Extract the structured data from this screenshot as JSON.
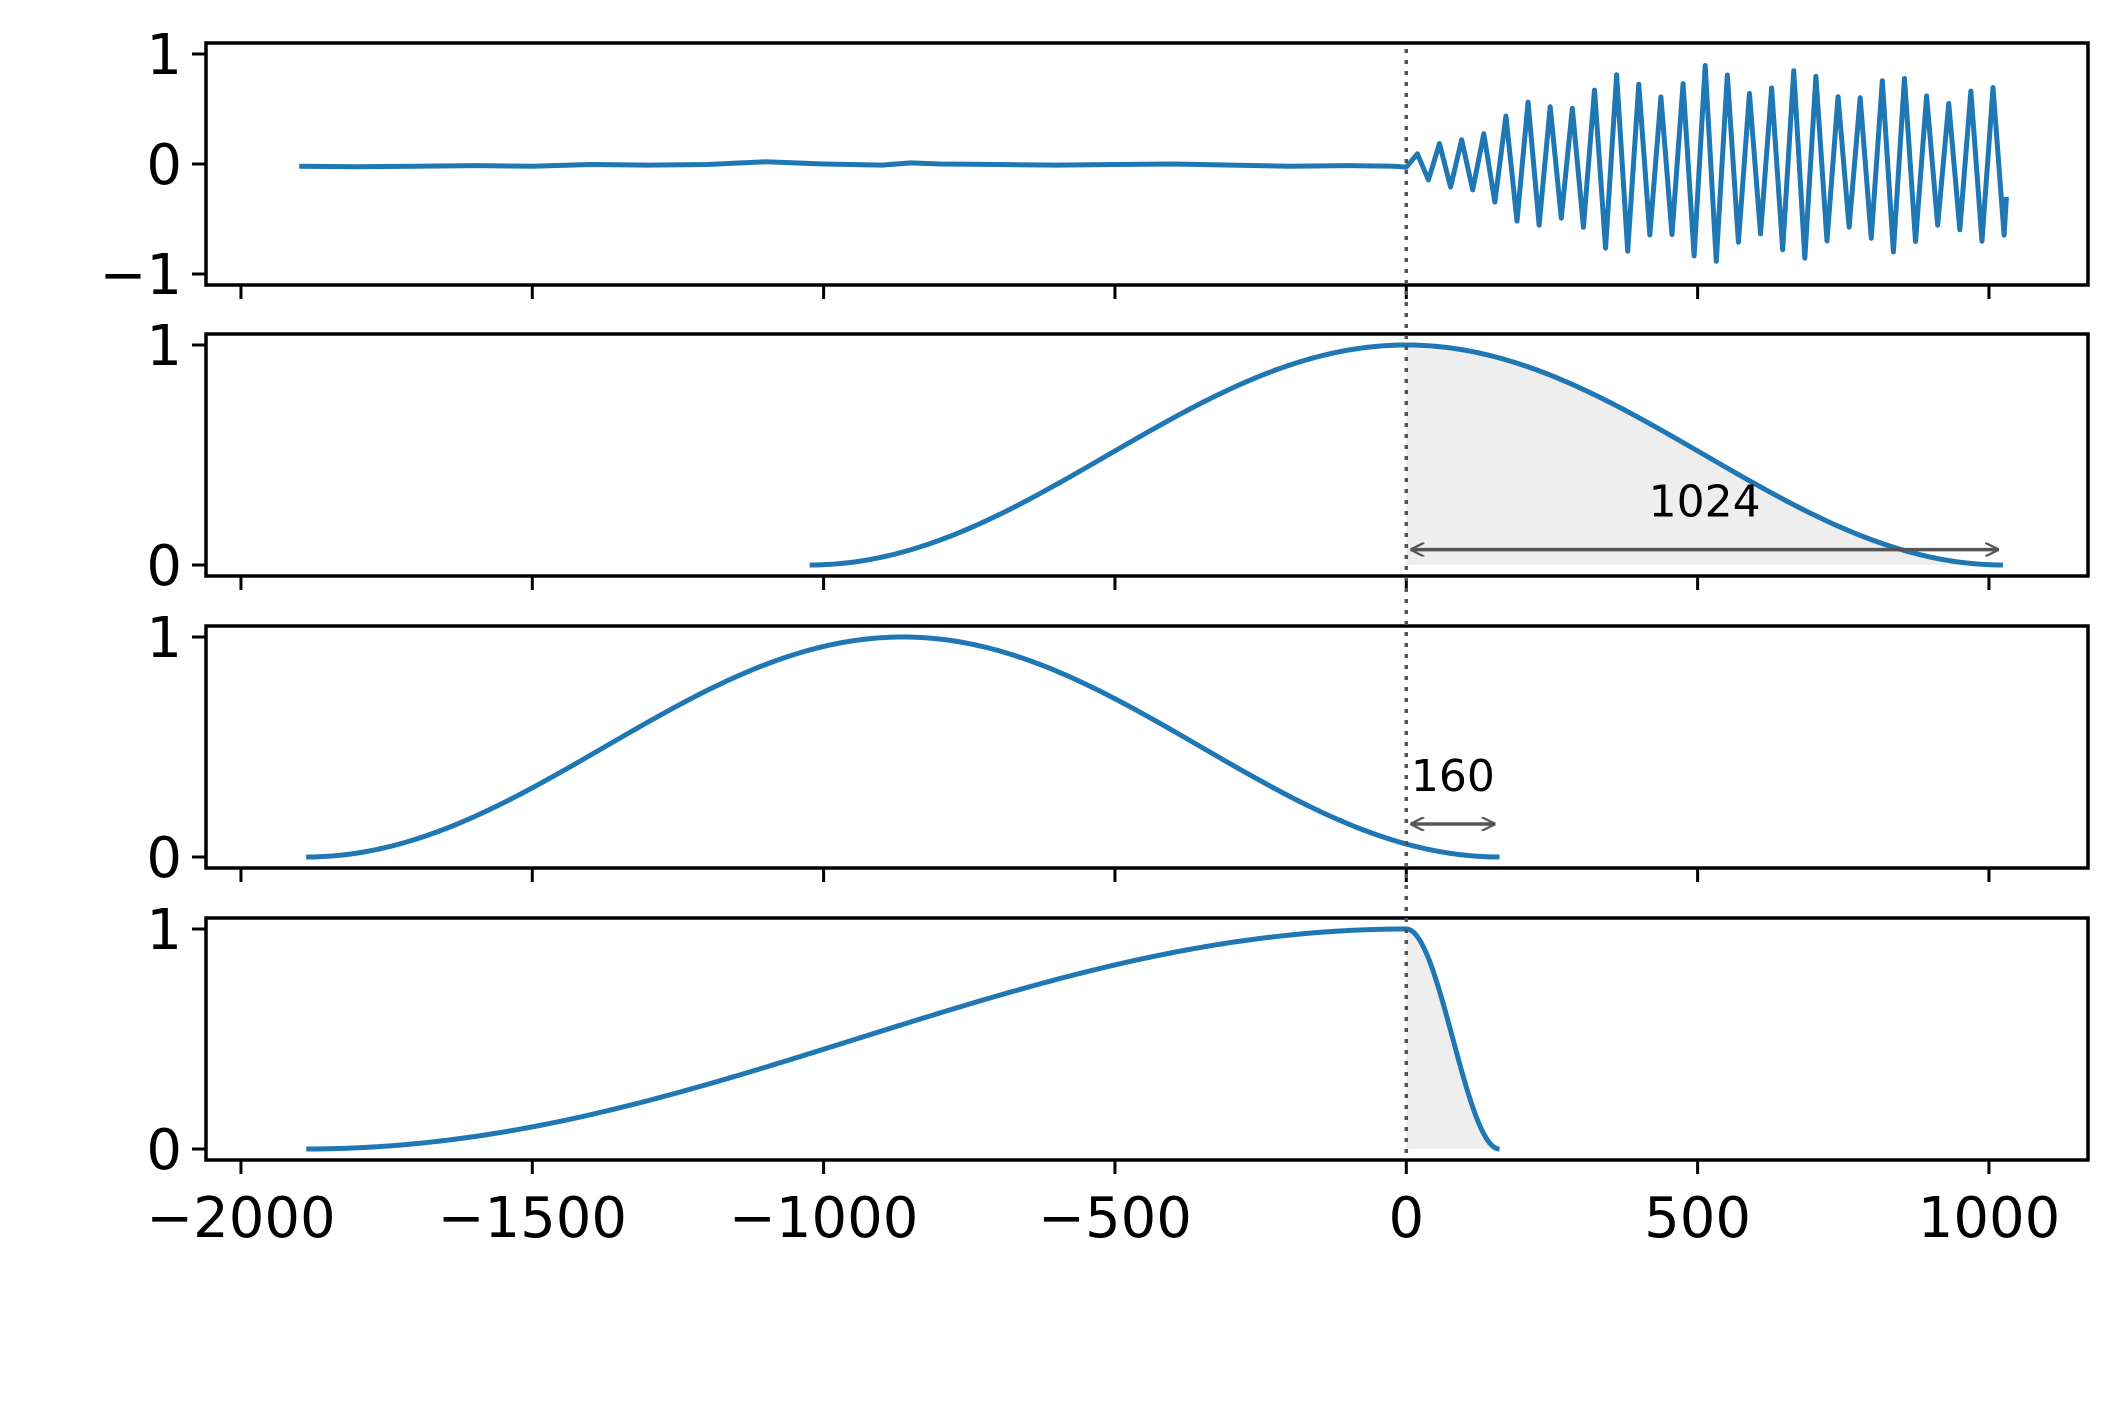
{
  "chart_data": {
    "type": "line",
    "layout": "4 vertically stacked panels sharing the x axis",
    "x_axis": {
      "range": [
        -2060,
        1170
      ],
      "ticks": [
        -2000,
        -1500,
        -1000,
        -500,
        0,
        500,
        1000
      ],
      "tick_labels": [
        "−2000",
        "−1500",
        "−1000",
        "−500",
        "0",
        "500",
        "1000"
      ]
    },
    "marker_line": {
      "x": 0,
      "style": "dotted",
      "color": "#555555"
    },
    "panels": [
      {
        "name": "signal",
        "ylim": [
          -1.1,
          1.1
        ],
        "yticks": [
          -1,
          0,
          1
        ],
        "ytick_labels": [
          "−1",
          "0",
          "1"
        ],
        "line_color": "#1f77b4",
        "series": {
          "points": [
            [
              -1900,
              -0.02
            ],
            [
              -1800,
              -0.025
            ],
            [
              -1700,
              -0.02
            ],
            [
              -1600,
              -0.015
            ],
            [
              -1500,
              -0.02
            ],
            [
              -1400,
              -0.005
            ],
            [
              -1300,
              -0.01
            ],
            [
              -1200,
              -0.005
            ],
            [
              -1100,
              0.02
            ],
            [
              -1000,
              0.0
            ],
            [
              -900,
              -0.01
            ],
            [
              -850,
              0.01
            ],
            [
              -800,
              0.0
            ],
            [
              -700,
              -0.005
            ],
            [
              -600,
              -0.01
            ],
            [
              -500,
              -0.005
            ],
            [
              -400,
              0.0
            ],
            [
              -300,
              -0.01
            ],
            [
              -200,
              -0.02
            ],
            [
              -100,
              -0.015
            ],
            [
              -20,
              -0.02
            ],
            [
              0,
              -0.03
            ]
          ],
          "oscillation": {
            "x_start": 0,
            "x_end": 1030,
            "step": 19,
            "envelope": [
              [
                0,
                0.05
              ],
              [
                100,
                0.3
              ],
              [
                200,
                0.55
              ],
              [
                300,
                0.75
              ],
              [
                400,
                0.85
              ],
              [
                500,
                0.9
              ],
              [
                600,
                0.9
              ],
              [
                700,
                0.85
              ],
              [
                800,
                0.8
              ],
              [
                900,
                0.8
              ],
              [
                1000,
                0.7
              ],
              [
                1030,
                0.7
              ]
            ],
            "end_value": -0.3
          }
        }
      },
      {
        "name": "window-1",
        "ylim": [
          -0.05,
          1.05
        ],
        "yticks": [
          0,
          1
        ],
        "ytick_labels": [
          "0",
          "1"
        ],
        "line_color": "#1f77b4",
        "curve": {
          "kind": "hann",
          "x_start": -1024,
          "x_end": 1024
        },
        "shade": {
          "x_start": 0,
          "x_end": 1024,
          "color": "#eeeeee"
        },
        "annotation": {
          "label": "1024",
          "x_start": 0,
          "x_end": 1024,
          "y": 0.07,
          "label_x": 512,
          "label_y": 0.22
        }
      },
      {
        "name": "window-2",
        "ylim": [
          -0.05,
          1.05
        ],
        "yticks": [
          0,
          1
        ],
        "ytick_labels": [
          "0",
          "1"
        ],
        "line_color": "#1f77b4",
        "curve": {
          "kind": "hann",
          "x_start": -1888,
          "x_end": 160
        },
        "annotation": {
          "label": "160",
          "x_start": 0,
          "x_end": 160,
          "y": 0.15,
          "label_x": 80,
          "label_y": 0.3
        }
      },
      {
        "name": "window-3",
        "ylim": [
          -0.05,
          1.05
        ],
        "yticks": [
          0,
          1
        ],
        "ytick_labels": [
          "0",
          "1"
        ],
        "line_color": "#1f77b4",
        "curve": {
          "kind": "asymmetric",
          "x_start": -1888,
          "x_peak": 0,
          "x_end": 160
        },
        "shade": {
          "x_start": 0,
          "x_end": 160,
          "color": "#eeeeee"
        }
      }
    ]
  }
}
